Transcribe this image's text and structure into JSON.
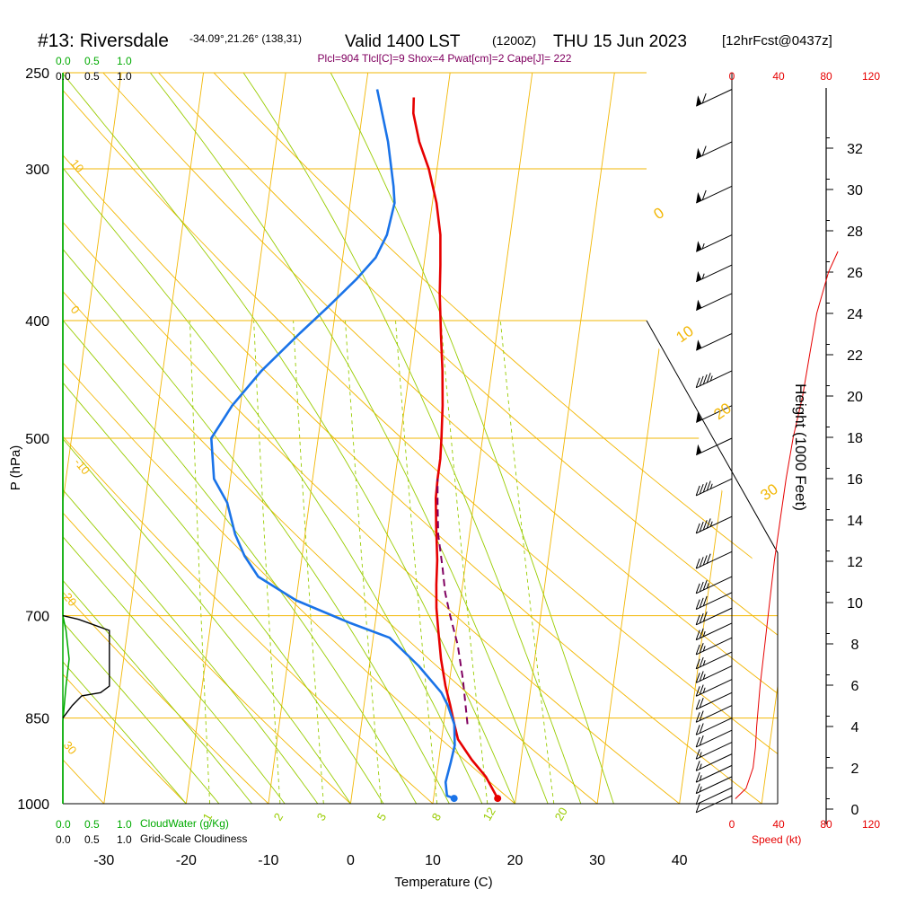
{
  "header": {
    "station": "#13: Riversdale",
    "coords": "-34.09°,21.26° (138,31)",
    "valid": "Valid 1400 LST",
    "utc": "(1200Z)",
    "date": "THU 15 Jun 2023",
    "forecast": "[12hrFcst@0437z]",
    "indices": "Plcl=904 Tlcl[C]=9 Shox=4 Pwat[cm]=2 Cape[J]= 222"
  },
  "colors": {
    "background": "#ffffff",
    "isobar": "#f2b705",
    "dry_adiabat": "#f2b705",
    "moist_adiabat": "#99cc00",
    "mixing_ratio": "#99cc00",
    "temperature": "#e60000",
    "dewpoint": "#1a73e8",
    "parcel": "#800060",
    "cloud_water": "#00aa00",
    "cloudiness": "#000000",
    "wind_speed": "#e60000",
    "text": "#000000"
  },
  "chart_data": {
    "type": "line",
    "title": "#13: Riversdale",
    "xlabel": "Temperature (C)",
    "ylabel": "P (hPa)",
    "y2label": "Height (1000 Feet)",
    "pressure_ticks": [
      250,
      300,
      400,
      500,
      700,
      850,
      1000
    ],
    "pressure_tick_labels": [
      "250",
      "300",
      "400",
      "500",
      "700",
      "850",
      "1000"
    ],
    "temperature_ticks": [
      -30,
      -20,
      -10,
      0,
      10,
      20,
      30,
      40
    ],
    "temperature_tick_labels": [
      "-30",
      "-20",
      "-10",
      "0",
      "10",
      "20",
      "30",
      "40"
    ],
    "height_ticks": [
      0,
      2,
      4,
      6,
      8,
      10,
      12,
      14,
      16,
      18,
      20,
      22,
      24,
      26,
      28,
      30,
      32
    ],
    "height_tick_labels": [
      "0",
      "2",
      "4",
      "6",
      "8",
      "10",
      "12",
      "14",
      "16",
      "18",
      "20",
      "22",
      "24",
      "26",
      "28",
      "30",
      "32"
    ],
    "xlim": [
      -35,
      36
    ],
    "ylim_hpa": [
      1000,
      250
    ],
    "skew_deg_per_decade": 20.1,
    "series": [
      {
        "name": "Temperature",
        "color": "#e60000",
        "points": [
          [
            17.8,
            990
          ],
          [
            16,
            950
          ],
          [
            14,
            920
          ],
          [
            12,
            885
          ],
          [
            11.3,
            860
          ],
          [
            10.5,
            830
          ],
          [
            9.6,
            800
          ],
          [
            8.6,
            760
          ],
          [
            7.8,
            720
          ],
          [
            7.2,
            690
          ],
          [
            6.8,
            660
          ],
          [
            6.5,
            630
          ],
          [
            5.8,
            590
          ],
          [
            5.3,
            560
          ],
          [
            5.2,
            540
          ],
          [
            5.2,
            520
          ],
          [
            5,
            500
          ],
          [
            4.6,
            470
          ],
          [
            4,
            440
          ],
          [
            3.2,
            410
          ],
          [
            2.4,
            380
          ],
          [
            2,
            360
          ],
          [
            1.5,
            340
          ],
          [
            0.5,
            320
          ],
          [
            -1,
            300
          ],
          [
            -2.6,
            285
          ],
          [
            -3.8,
            270
          ],
          [
            -4,
            262
          ]
        ]
      },
      {
        "name": "Dewpoint",
        "color": "#1a73e8",
        "points": [
          [
            12.5,
            990
          ],
          [
            11.6,
            985
          ],
          [
            11.2,
            960
          ],
          [
            11.5,
            925
          ],
          [
            11.7,
            895
          ],
          [
            11.3,
            860
          ],
          [
            10.2,
            830
          ],
          [
            9.2,
            810
          ],
          [
            6,
            770
          ],
          [
            2,
            730
          ],
          [
            -3,
            710
          ],
          [
            -10,
            680
          ],
          [
            -15,
            650
          ],
          [
            -17,
            625
          ],
          [
            -18.5,
            600
          ],
          [
            -20,
            565
          ],
          [
            -22,
            540
          ],
          [
            -23,
            500
          ],
          [
            -21,
            470
          ],
          [
            -18,
            440
          ],
          [
            -14,
            410
          ],
          [
            -11,
            390
          ],
          [
            -8,
            370
          ],
          [
            -6,
            355
          ],
          [
            -5,
            340
          ],
          [
            -4.6,
            320
          ],
          [
            -5,
            310
          ],
          [
            -6.4,
            285
          ],
          [
            -8,
            265
          ],
          [
            -8.6,
            258
          ]
        ]
      },
      {
        "name": "Parcel",
        "color": "#800060",
        "dashed": true,
        "points": [
          [
            12.9,
            860
          ],
          [
            11.6,
            790
          ],
          [
            10.4,
            740
          ],
          [
            9,
            700
          ],
          [
            8,
            670
          ],
          [
            7.3,
            640
          ],
          [
            6.2,
            600
          ],
          [
            5.6,
            565
          ],
          [
            5.2,
            540
          ]
        ]
      }
    ],
    "dry_adiabats": [
      -10,
      0,
      10,
      20,
      30
    ],
    "dry_adiabat_labels": [
      "-10",
      "0",
      "10",
      "20",
      "30"
    ],
    "moist_adiabats": [
      0,
      10,
      20,
      30
    ],
    "moist_adiabat_labels": [
      "0",
      "10",
      "20",
      "30"
    ],
    "mixing_ratios": [
      1,
      2,
      3,
      5,
      8,
      12,
      20
    ],
    "mixing_ratio_labels": [
      "1",
      "2",
      "3",
      "5",
      "8",
      "12",
      "20"
    ],
    "dry_adiabat_grid_c": [
      -140,
      -130,
      -120,
      -110,
      -100,
      -90,
      -80,
      -70,
      -60,
      -50,
      -40,
      -30,
      -20,
      -10,
      0,
      10,
      20,
      30,
      40,
      50,
      60,
      70,
      80,
      90
    ],
    "moist_adiabat_grid_c": [
      -20,
      -16,
      -12,
      -8,
      -4,
      0,
      4,
      8,
      12,
      16,
      20,
      24,
      28,
      32
    ],
    "mixing_ratio_grid_gkg": [
      1,
      2,
      3,
      5,
      8,
      12,
      20
    ],
    "wind_speed": {
      "label": "Speed (kt)",
      "ticks": [
        0,
        40,
        80,
        120
      ],
      "tick_labels": [
        "0",
        "40",
        "80",
        "120"
      ],
      "profile": [
        [
          0.5,
          3
        ],
        [
          1,
          12
        ],
        [
          2,
          18
        ],
        [
          3,
          20
        ],
        [
          4,
          21
        ],
        [
          6,
          24
        ],
        [
          8,
          28
        ],
        [
          10,
          32
        ],
        [
          12,
          36
        ],
        [
          14,
          41
        ],
        [
          16,
          46
        ],
        [
          18,
          52
        ],
        [
          20,
          60
        ],
        [
          22,
          66
        ],
        [
          24,
          72
        ],
        [
          26,
          82
        ],
        [
          27,
          90
        ]
      ]
    },
    "cloud_water": {
      "label": "CloudWater (g/Kg)",
      "ticks": [
        0.0,
        0.5,
        1.0
      ],
      "tick_labels": [
        "0.0",
        "0.5",
        "1.0"
      ],
      "profile": [
        [
          0,
          1000
        ],
        [
          0,
          855
        ],
        [
          0.05,
          800
        ],
        [
          0.1,
          760
        ],
        [
          0.05,
          720
        ],
        [
          0,
          700
        ],
        [
          0,
          250
        ]
      ]
    },
    "cloudiness": {
      "label": "Grid-Scale Cloudiness",
      "ticks": [
        0.0,
        0.5,
        1.0
      ],
      "tick_labels": [
        "0.0",
        "0.5",
        "1.0"
      ],
      "profile": [
        [
          0,
          850
        ],
        [
          0.15,
          830
        ],
        [
          0.3,
          815
        ],
        [
          0.6,
          810
        ],
        [
          0.74,
          800
        ],
        [
          0.74,
          790
        ],
        [
          0.74,
          740
        ],
        [
          0.74,
          720
        ],
        [
          0.25,
          705
        ],
        [
          0,
          700
        ]
      ]
    },
    "wind_barbs": [
      {
        "p": 258,
        "dir": 290,
        "kt": 60
      },
      {
        "p": 285,
        "dir": 290,
        "kt": 60
      },
      {
        "p": 310,
        "dir": 290,
        "kt": 60
      },
      {
        "p": 340,
        "dir": 290,
        "kt": 55
      },
      {
        "p": 360,
        "dir": 290,
        "kt": 55
      },
      {
        "p": 380,
        "dir": 290,
        "kt": 50
      },
      {
        "p": 410,
        "dir": 290,
        "kt": 50
      },
      {
        "p": 440,
        "dir": 290,
        "kt": 45
      },
      {
        "p": 470,
        "dir": 290,
        "kt": 50
      },
      {
        "p": 500,
        "dir": 290,
        "kt": 50
      },
      {
        "p": 540,
        "dir": 290,
        "kt": 45
      },
      {
        "p": 580,
        "dir": 290,
        "kt": 45
      },
      {
        "p": 620,
        "dir": 290,
        "kt": 40
      },
      {
        "p": 650,
        "dir": 290,
        "kt": 35
      },
      {
        "p": 670,
        "dir": 290,
        "kt": 30
      },
      {
        "p": 690,
        "dir": 290,
        "kt": 30
      },
      {
        "p": 710,
        "dir": 295,
        "kt": 25
      },
      {
        "p": 730,
        "dir": 295,
        "kt": 25
      },
      {
        "p": 750,
        "dir": 300,
        "kt": 25
      },
      {
        "p": 770,
        "dir": 300,
        "kt": 25
      },
      {
        "p": 790,
        "dir": 300,
        "kt": 25
      },
      {
        "p": 810,
        "dir": 300,
        "kt": 20
      },
      {
        "p": 830,
        "dir": 300,
        "kt": 20
      },
      {
        "p": 850,
        "dir": 300,
        "kt": 20
      },
      {
        "p": 870,
        "dir": 300,
        "kt": 20
      },
      {
        "p": 890,
        "dir": 300,
        "kt": 15
      },
      {
        "p": 910,
        "dir": 300,
        "kt": 15
      },
      {
        "p": 930,
        "dir": 300,
        "kt": 15
      },
      {
        "p": 950,
        "dir": 300,
        "kt": 15
      },
      {
        "p": 970,
        "dir": 300,
        "kt": 10
      },
      {
        "p": 985,
        "dir": 300,
        "kt": 10
      }
    ]
  }
}
